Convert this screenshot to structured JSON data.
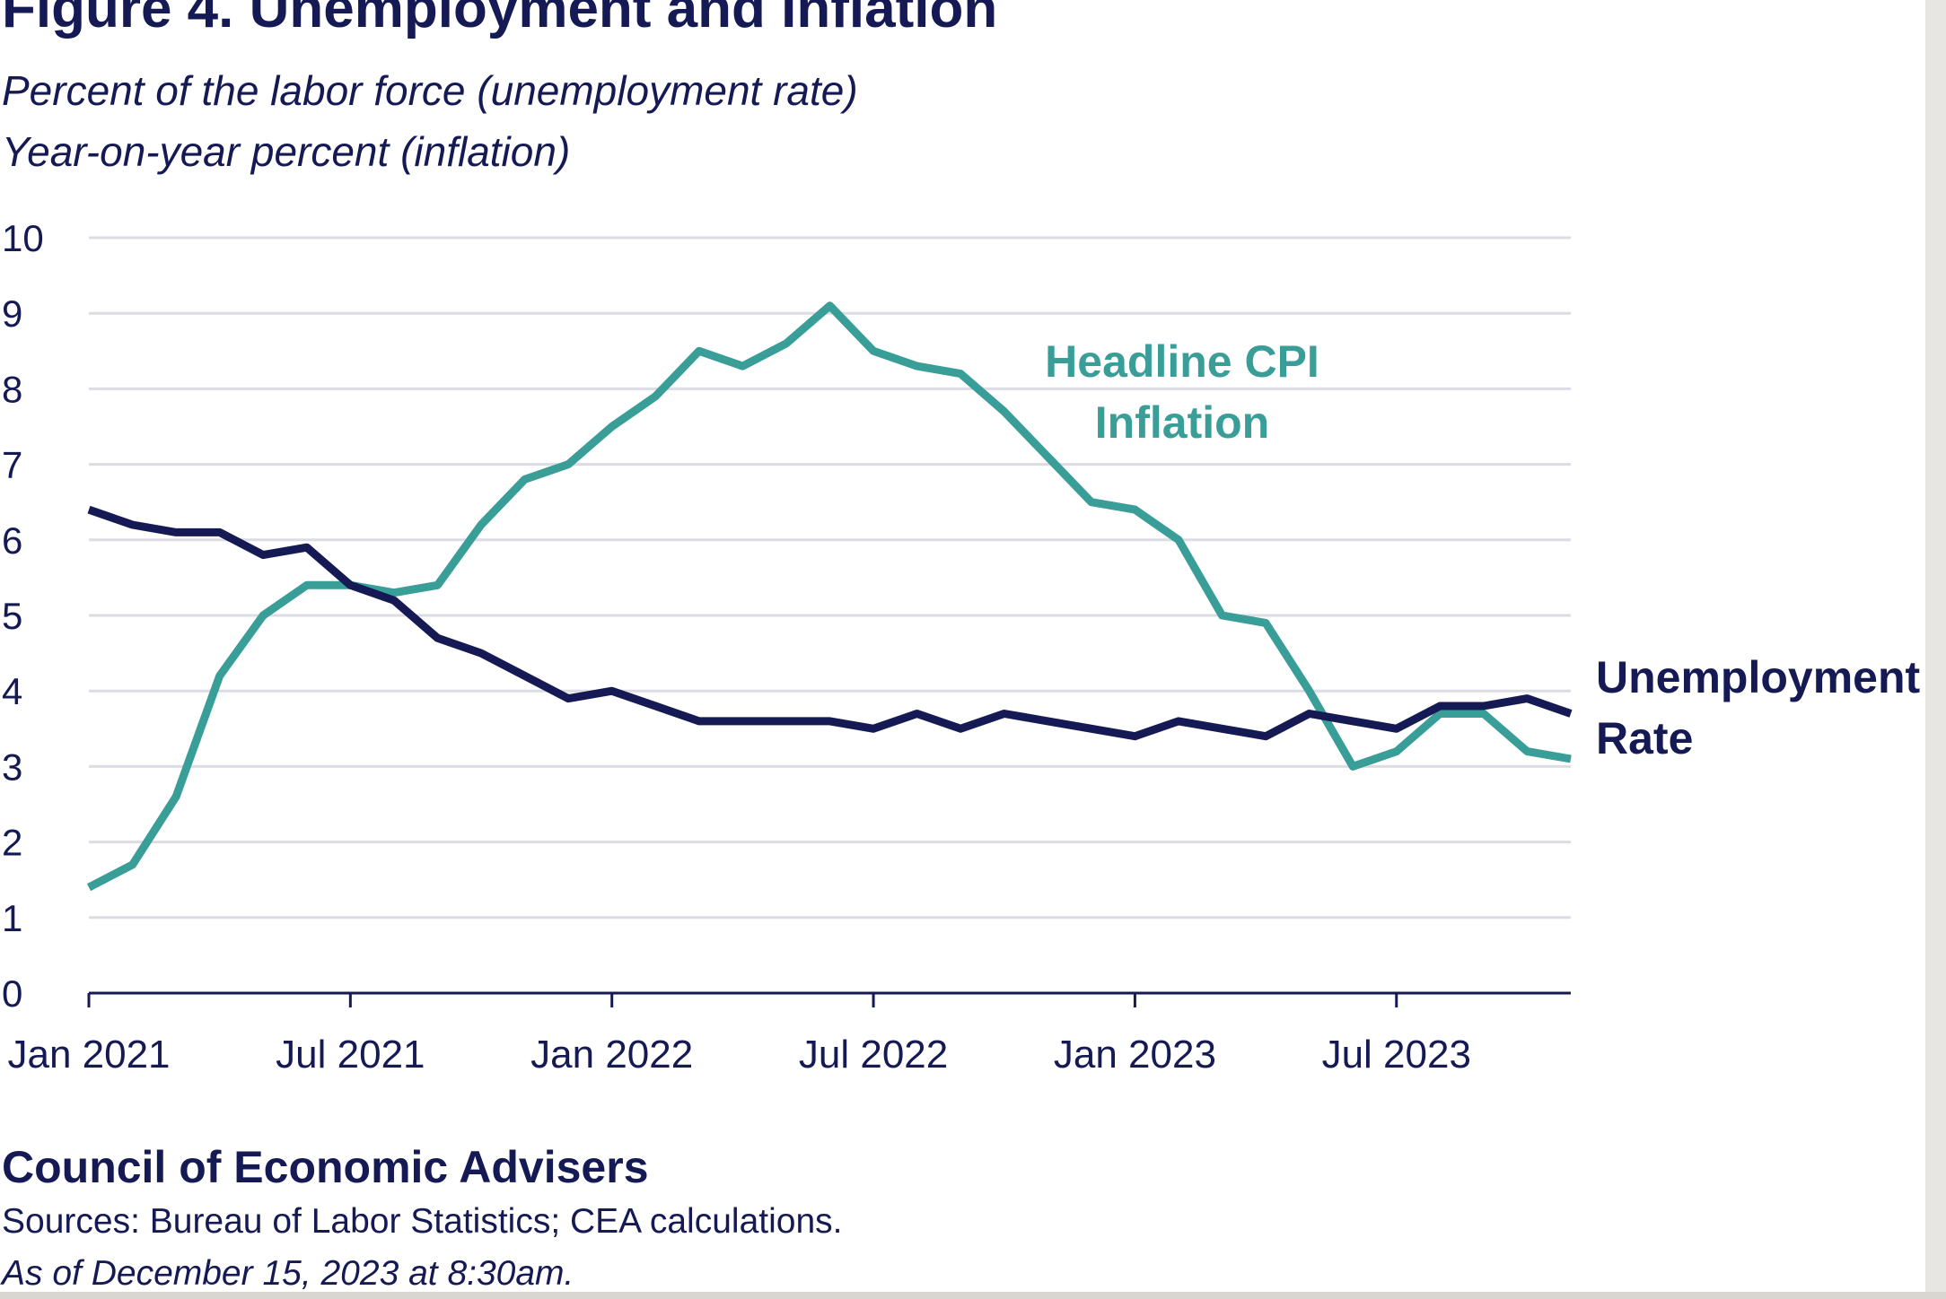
{
  "title": "Figure 4. Unemployment and Inflation",
  "subtitle_lines": [
    "Percent of the labor force (unemployment rate)",
    "Year-on-year percent (inflation)"
  ],
  "footer": {
    "organization": "Council of Economic Advisers",
    "sources": "Sources: Bureau of Labor Statistics; CEA calculations.",
    "as_of": "As of December 15, 2023 at 8:30am."
  },
  "colors": {
    "unemployment": "#151a54",
    "inflation": "#3a9e98",
    "grid": "#dcdce4",
    "axis": "#151a54"
  },
  "chart_data": {
    "type": "line",
    "ylim": [
      0,
      10
    ],
    "y_ticks": [
      0,
      1,
      2,
      3,
      4,
      5,
      6,
      7,
      8,
      9,
      10
    ],
    "x_range": [
      "2021-01",
      "2023-11"
    ],
    "x_tick_labels": [
      "Jan 2021",
      "Jul 2021",
      "Jan 2022",
      "Jul 2022",
      "Jan 2023",
      "Jul 2023"
    ],
    "x_tick_dates": [
      "2021-01",
      "2021-07",
      "2022-01",
      "2022-07",
      "2023-01",
      "2023-07"
    ],
    "grid": true,
    "x": [
      "2021-01",
      "2021-02",
      "2021-03",
      "2021-04",
      "2021-05",
      "2021-06",
      "2021-07",
      "2021-08",
      "2021-09",
      "2021-10",
      "2021-11",
      "2021-12",
      "2022-01",
      "2022-02",
      "2022-03",
      "2022-04",
      "2022-05",
      "2022-06",
      "2022-07",
      "2022-08",
      "2022-09",
      "2022-10",
      "2022-11",
      "2022-12",
      "2023-01",
      "2023-02",
      "2023-03",
      "2023-04",
      "2023-05",
      "2023-06",
      "2023-07",
      "2023-08",
      "2023-09",
      "2023-10",
      "2023-11"
    ],
    "series": [
      {
        "key": "inflation",
        "label_lines": [
          "Headline CPI",
          "Inflation"
        ],
        "values": [
          1.4,
          1.7,
          2.6,
          4.2,
          5.0,
          5.4,
          5.4,
          5.3,
          5.4,
          6.2,
          6.8,
          7.0,
          7.5,
          7.9,
          8.5,
          8.3,
          8.6,
          9.1,
          8.5,
          8.3,
          8.2,
          7.7,
          7.1,
          6.5,
          6.4,
          6.0,
          5.0,
          4.9,
          4.0,
          3.0,
          3.2,
          3.7,
          3.7,
          3.2,
          3.1
        ]
      },
      {
        "key": "unemployment",
        "label_lines": [
          "Unemployment",
          "Rate"
        ],
        "values": [
          6.4,
          6.2,
          6.1,
          6.1,
          5.8,
          5.9,
          5.4,
          5.2,
          4.7,
          4.5,
          4.2,
          3.9,
          4.0,
          3.8,
          3.6,
          3.6,
          3.6,
          3.6,
          3.5,
          3.7,
          3.5,
          3.7,
          3.6,
          3.5,
          3.4,
          3.6,
          3.5,
          3.4,
          3.7,
          3.6,
          3.5,
          3.8,
          3.8,
          3.9,
          3.7
        ]
      }
    ]
  }
}
